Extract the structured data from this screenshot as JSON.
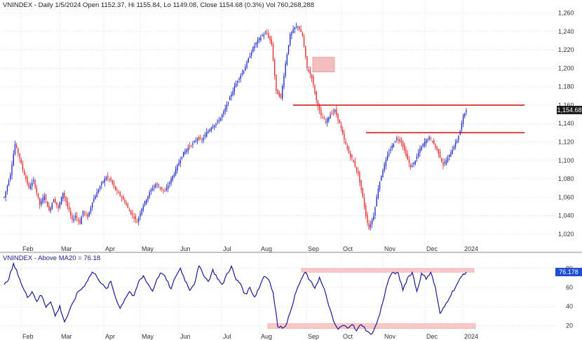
{
  "chart_data": [
    {
      "type": "candlestick",
      "title": "VNINDEX - Daily 1/5/2024 Open 1152.37, Hi 1155.84, Lo 1149.08, Close 1154.68 (0.3%) Vol 760,268,288",
      "months": [
        "Feb",
        "Mar",
        "Apr",
        "May",
        "Jun",
        "Jul",
        "Aug",
        "Sep",
        "Oct",
        "Nov",
        "Dec",
        "2024"
      ],
      "yticks": [
        "1,020",
        "1,040",
        "1,060",
        "1,080",
        "1,100",
        "1,120",
        "1,140",
        "1,160",
        "1,180",
        "1,200",
        "1,220",
        "1,240",
        "1,260"
      ],
      "ylim": [
        1010,
        1265
      ],
      "last_value_label": "1,154.68",
      "last_value": 1154.68,
      "anchors": [
        [
          0,
          1060
        ],
        [
          4,
          1085
        ],
        [
          7,
          1118
        ],
        [
          9,
          1108
        ],
        [
          12,
          1090
        ],
        [
          16,
          1070
        ],
        [
          19,
          1078
        ],
        [
          23,
          1052
        ],
        [
          26,
          1062
        ],
        [
          29,
          1045
        ],
        [
          32,
          1058
        ],
        [
          35,
          1048
        ],
        [
          38,
          1065
        ],
        [
          41,
          1050
        ],
        [
          44,
          1035
        ],
        [
          46,
          1040
        ],
        [
          49,
          1032
        ],
        [
          51,
          1045
        ],
        [
          54,
          1038
        ],
        [
          57,
          1055
        ],
        [
          60,
          1065
        ],
        [
          63,
          1075
        ],
        [
          66,
          1082
        ],
        [
          69,
          1078
        ],
        [
          72,
          1068
        ],
        [
          75,
          1062
        ],
        [
          78,
          1055
        ],
        [
          81,
          1045
        ],
        [
          84,
          1038
        ],
        [
          86,
          1033
        ],
        [
          89,
          1048
        ],
        [
          92,
          1058
        ],
        [
          95,
          1068
        ],
        [
          98,
          1074
        ],
        [
          101,
          1070
        ],
        [
          104,
          1066
        ],
        [
          107,
          1076
        ],
        [
          110,
          1086
        ],
        [
          113,
          1098
        ],
        [
          116,
          1108
        ],
        [
          119,
          1114
        ],
        [
          122,
          1118
        ],
        [
          125,
          1124
        ],
        [
          128,
          1122
        ],
        [
          131,
          1130
        ],
        [
          134,
          1136
        ],
        [
          137,
          1140
        ],
        [
          140,
          1146
        ],
        [
          143,
          1156
        ],
        [
          146,
          1168
        ],
        [
          149,
          1180
        ],
        [
          152,
          1190
        ],
        [
          155,
          1198
        ],
        [
          158,
          1210
        ],
        [
          161,
          1222
        ],
        [
          164,
          1230
        ],
        [
          167,
          1236
        ],
        [
          170,
          1238
        ],
        [
          173,
          1226
        ],
        [
          176,
          1175
        ],
        [
          179,
          1168
        ],
        [
          182,
          1205
        ],
        [
          185,
          1236
        ],
        [
          188,
          1244
        ],
        [
          190,
          1246
        ],
        [
          193,
          1235
        ],
        [
          196,
          1200
        ],
        [
          199,
          1190
        ],
        [
          202,
          1165
        ],
        [
          205,
          1148
        ],
        [
          208,
          1142
        ],
        [
          211,
          1150
        ],
        [
          214,
          1154
        ],
        [
          217,
          1140
        ],
        [
          220,
          1122
        ],
        [
          223,
          1108
        ],
        [
          226,
          1098
        ],
        [
          229,
          1085
        ],
        [
          232,
          1060
        ],
        [
          234,
          1040
        ],
        [
          236,
          1026
        ],
        [
          239,
          1040
        ],
        [
          242,
          1070
        ],
        [
          245,
          1090
        ],
        [
          248,
          1105
        ],
        [
          251,
          1116
        ],
        [
          254,
          1124
        ],
        [
          257,
          1120
        ],
        [
          260,
          1106
        ],
        [
          263,
          1092
        ],
        [
          266,
          1100
        ],
        [
          269,
          1112
        ],
        [
          272,
          1120
        ],
        [
          275,
          1125
        ],
        [
          278,
          1118
        ],
        [
          281,
          1108
        ],
        [
          284,
          1095
        ],
        [
          287,
          1102
        ],
        [
          290,
          1112
        ],
        [
          293,
          1122
        ],
        [
          295,
          1132
        ],
        [
          297,
          1148
        ],
        [
          299,
          1154.68
        ]
      ],
      "resistance_levels": [
        1160,
        1130
      ]
    },
    {
      "type": "line",
      "title": "VNINDEX - Above MA20 = 76.18",
      "series": [
        {
          "name": "Above MA20",
          "values": "anchors"
        }
      ],
      "months": [
        "Feb",
        "Mar",
        "Apr",
        "May",
        "Jun",
        "Jul",
        "Aug",
        "Sep",
        "Oct",
        "Nov",
        "Dec",
        "2024"
      ],
      "yticks": [
        "20",
        "40",
        "60",
        "80"
      ],
      "ylim": [
        10,
        88
      ],
      "last_value_label": "76.178",
      "anchors": [
        [
          0,
          62
        ],
        [
          3,
          70
        ],
        [
          6,
          84
        ],
        [
          9,
          74
        ],
        [
          12,
          60
        ],
        [
          15,
          50
        ],
        [
          18,
          56
        ],
        [
          21,
          46
        ],
        [
          24,
          52
        ],
        [
          27,
          40
        ],
        [
          30,
          46
        ],
        [
          33,
          30
        ],
        [
          36,
          40
        ],
        [
          39,
          24
        ],
        [
          42,
          34
        ],
        [
          45,
          46
        ],
        [
          48,
          56
        ],
        [
          51,
          60
        ],
        [
          54,
          68
        ],
        [
          57,
          76
        ],
        [
          60,
          72
        ],
        [
          63,
          64
        ],
        [
          66,
          58
        ],
        [
          69,
          66
        ],
        [
          72,
          50
        ],
        [
          75,
          38
        ],
        [
          78,
          48
        ],
        [
          81,
          56
        ],
        [
          84,
          50
        ],
        [
          87,
          66
        ],
        [
          90,
          72
        ],
        [
          93,
          64
        ],
        [
          96,
          56
        ],
        [
          99,
          70
        ],
        [
          102,
          76
        ],
        [
          105,
          68
        ],
        [
          108,
          58
        ],
        [
          111,
          72
        ],
        [
          114,
          80
        ],
        [
          117,
          68
        ],
        [
          120,
          58
        ],
        [
          123,
          64
        ],
        [
          126,
          82
        ],
        [
          129,
          74
        ],
        [
          132,
          66
        ],
        [
          135,
          78
        ],
        [
          138,
          70
        ],
        [
          141,
          62
        ],
        [
          144,
          74
        ],
        [
          147,
          82
        ],
        [
          150,
          68
        ],
        [
          153,
          64
        ],
        [
          156,
          52
        ],
        [
          159,
          60
        ],
        [
          162,
          50
        ],
        [
          165,
          60
        ],
        [
          168,
          72
        ],
        [
          171,
          70
        ],
        [
          174,
          54
        ],
        [
          177,
          20
        ],
        [
          180,
          18
        ],
        [
          183,
          22
        ],
        [
          186,
          40
        ],
        [
          189,
          56
        ],
        [
          192,
          68
        ],
        [
          195,
          76
        ],
        [
          198,
          66
        ],
        [
          201,
          60
        ],
        [
          204,
          70
        ],
        [
          207,
          58
        ],
        [
          210,
          42
        ],
        [
          213,
          24
        ],
        [
          216,
          16
        ],
        [
          219,
          20
        ],
        [
          222,
          18
        ],
        [
          225,
          22
        ],
        [
          228,
          14
        ],
        [
          231,
          22
        ],
        [
          234,
          16
        ],
        [
          237,
          10
        ],
        [
          240,
          18
        ],
        [
          243,
          32
        ],
        [
          246,
          52
        ],
        [
          249,
          70
        ],
        [
          252,
          76
        ],
        [
          255,
          74
        ],
        [
          258,
          58
        ],
        [
          261,
          70
        ],
        [
          264,
          76
        ],
        [
          267,
          56
        ],
        [
          270,
          74
        ],
        [
          273,
          70
        ],
        [
          276,
          76
        ],
        [
          279,
          60
        ],
        [
          282,
          32
        ],
        [
          285,
          40
        ],
        [
          288,
          50
        ],
        [
          291,
          58
        ],
        [
          294,
          66
        ],
        [
          297,
          74
        ],
        [
          299,
          76.18
        ]
      ],
      "overbought_band": [
        76,
        80
      ],
      "oversold_band": [
        17,
        22
      ]
    }
  ],
  "colors": {
    "up": "#1a25c8",
    "down": "#e0252a",
    "grid": "#d0d0d0",
    "level_line": "#d51a1a",
    "band_fill": "#f6c8c8",
    "box_fill": "#f3b3b3",
    "breadth_line": "#1a1a9a",
    "label_bg": "#1f4fd0"
  }
}
